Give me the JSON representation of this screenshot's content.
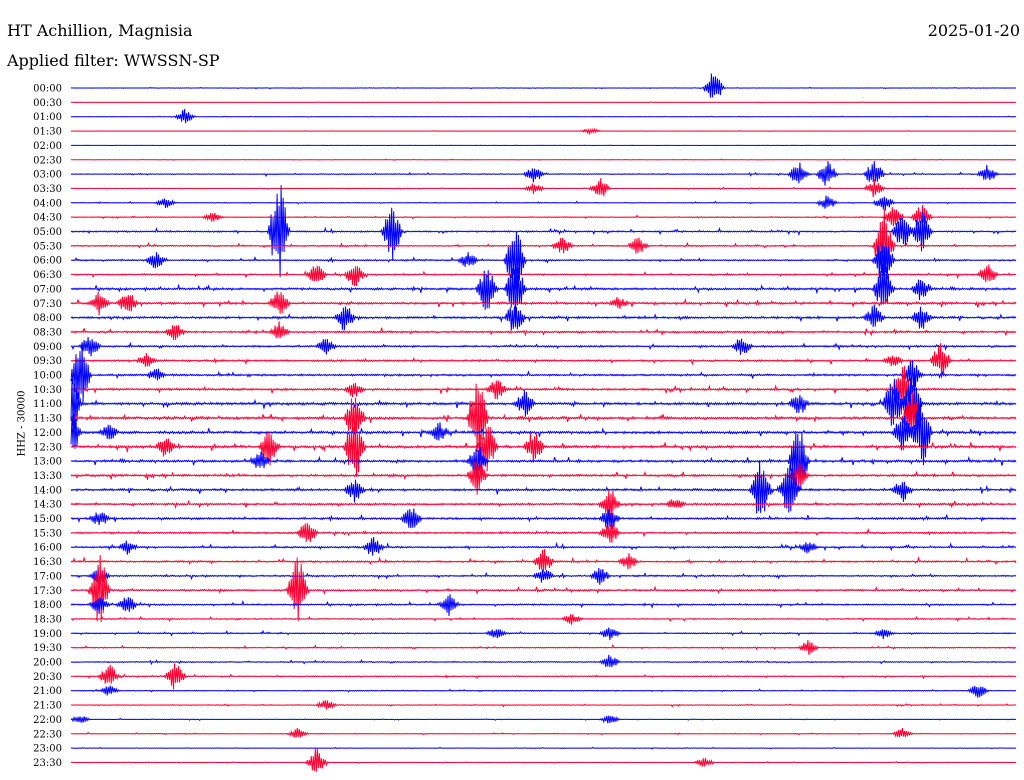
{
  "header": {
    "station": "HT Achillion, Magnisia",
    "date": "2025-01-20",
    "filter": "Applied filter: WWSSN-SP"
  },
  "chart_data": {
    "type": "line",
    "title": "HT Achillion, Magnisia",
    "ylabel": "HHZ - 30000",
    "xlabel": "",
    "grid": false,
    "legend": "none",
    "colors": [
      "#0000ff",
      "#ff0033"
    ],
    "categories": [
      "00:00",
      "00:30",
      "01:00",
      "01:30",
      "02:00",
      "02:30",
      "03:00",
      "03:30",
      "04:00",
      "04:30",
      "05:00",
      "05:30",
      "06:00",
      "06:30",
      "07:00",
      "07:30",
      "08:00",
      "08:30",
      "09:00",
      "09:30",
      "10:00",
      "10:30",
      "11:00",
      "11:30",
      "12:00",
      "12:30",
      "13:00",
      "13:30",
      "14:00",
      "14:30",
      "15:00",
      "15:30",
      "16:00",
      "16:30",
      "17:00",
      "17:30",
      "18:00",
      "18:30",
      "19:00",
      "19:30",
      "20:00",
      "20:30",
      "21:00",
      "21:30",
      "22:00",
      "22:30",
      "23:00",
      "23:30"
    ],
    "series": [
      {
        "label": "00:00",
        "activity": 0.1,
        "events": [
          [
            0.68,
            18
          ]
        ]
      },
      {
        "label": "00:30",
        "activity": 0.08,
        "events": []
      },
      {
        "label": "01:00",
        "activity": 0.08,
        "events": [
          [
            0.12,
            8
          ]
        ]
      },
      {
        "label": "01:30",
        "activity": 0.05,
        "events": [
          [
            0.55,
            3
          ]
        ]
      },
      {
        "label": "02:00",
        "activity": 0.04,
        "events": []
      },
      {
        "label": "02:30",
        "activity": 0.1,
        "events": []
      },
      {
        "label": "03:00",
        "activity": 0.25,
        "events": [
          [
            0.49,
            10
          ],
          [
            0.77,
            14
          ],
          [
            0.8,
            16
          ],
          [
            0.85,
            16
          ],
          [
            0.97,
            10
          ]
        ]
      },
      {
        "label": "03:30",
        "activity": 0.2,
        "events": [
          [
            0.49,
            6
          ],
          [
            0.56,
            12
          ],
          [
            0.85,
            10
          ]
        ]
      },
      {
        "label": "04:00",
        "activity": 0.2,
        "events": [
          [
            0.1,
            6
          ],
          [
            0.8,
            8
          ],
          [
            0.86,
            10
          ]
        ]
      },
      {
        "label": "04:30",
        "activity": 0.25,
        "events": [
          [
            0.15,
            6
          ],
          [
            0.87,
            12
          ],
          [
            0.9,
            14
          ]
        ]
      },
      {
        "label": "05:00",
        "activity": 0.4,
        "events": [
          [
            0.22,
            60
          ],
          [
            0.34,
            30
          ],
          [
            0.88,
            20
          ],
          [
            0.9,
            22
          ]
        ]
      },
      {
        "label": "05:30",
        "activity": 0.35,
        "events": [
          [
            0.52,
            10
          ],
          [
            0.6,
            10
          ],
          [
            0.86,
            40
          ]
        ]
      },
      {
        "label": "06:00",
        "activity": 0.4,
        "events": [
          [
            0.09,
            10
          ],
          [
            0.42,
            10
          ],
          [
            0.47,
            40
          ],
          [
            0.86,
            30
          ]
        ]
      },
      {
        "label": "06:30",
        "activity": 0.4,
        "events": [
          [
            0.26,
            12
          ],
          [
            0.3,
            14
          ],
          [
            0.97,
            12
          ]
        ]
      },
      {
        "label": "07:00",
        "activity": 0.6,
        "events": [
          [
            0.44,
            28
          ],
          [
            0.47,
            35
          ],
          [
            0.86,
            30
          ],
          [
            0.9,
            14
          ]
        ]
      },
      {
        "label": "07:30",
        "activity": 0.6,
        "events": [
          [
            0.03,
            14
          ],
          [
            0.06,
            14
          ],
          [
            0.22,
            16
          ],
          [
            0.58,
            8
          ]
        ]
      },
      {
        "label": "08:00",
        "activity": 0.6,
        "events": [
          [
            0.29,
            16
          ],
          [
            0.47,
            20
          ],
          [
            0.85,
            14
          ],
          [
            0.9,
            14
          ]
        ]
      },
      {
        "label": "08:30",
        "activity": 0.55,
        "events": [
          [
            0.11,
            10
          ],
          [
            0.22,
            12
          ]
        ]
      },
      {
        "label": "09:00",
        "activity": 0.5,
        "events": [
          [
            0.02,
            14
          ],
          [
            0.27,
            10
          ],
          [
            0.71,
            12
          ]
        ]
      },
      {
        "label": "09:30",
        "activity": 0.5,
        "events": [
          [
            0.08,
            8
          ],
          [
            0.87,
            8
          ],
          [
            0.92,
            20
          ]
        ]
      },
      {
        "label": "10:00",
        "activity": 0.55,
        "events": [
          [
            0.01,
            40
          ],
          [
            0.09,
            8
          ],
          [
            0.89,
            18
          ]
        ]
      },
      {
        "label": "10:30",
        "activity": 0.55,
        "events": [
          [
            0.3,
            10
          ],
          [
            0.45,
            12
          ],
          [
            0.88,
            30
          ]
        ]
      },
      {
        "label": "11:00",
        "activity": 0.7,
        "events": [
          [
            0.0,
            40
          ],
          [
            0.48,
            16
          ],
          [
            0.77,
            14
          ],
          [
            0.87,
            30
          ],
          [
            0.89,
            40
          ]
        ]
      },
      {
        "label": "11:30",
        "activity": 0.7,
        "events": [
          [
            0.3,
            30
          ],
          [
            0.43,
            50
          ],
          [
            0.89,
            30
          ]
        ]
      },
      {
        "label": "12:00",
        "activity": 0.7,
        "events": [
          [
            0.0,
            30
          ],
          [
            0.04,
            10
          ],
          [
            0.39,
            12
          ],
          [
            0.88,
            20
          ],
          [
            0.9,
            40
          ]
        ]
      },
      {
        "label": "12:30",
        "activity": 0.7,
        "events": [
          [
            0.1,
            12
          ],
          [
            0.21,
            22
          ],
          [
            0.3,
            40
          ],
          [
            0.44,
            30
          ],
          [
            0.49,
            20
          ]
        ]
      },
      {
        "label": "13:00",
        "activity": 0.65,
        "events": [
          [
            0.2,
            14
          ],
          [
            0.43,
            20
          ],
          [
            0.77,
            40
          ]
        ]
      },
      {
        "label": "13:30",
        "activity": 0.6,
        "events": [
          [
            0.43,
            20
          ],
          [
            0.77,
            14
          ]
        ]
      },
      {
        "label": "14:00",
        "activity": 0.6,
        "events": [
          [
            0.3,
            14
          ],
          [
            0.73,
            38
          ],
          [
            0.76,
            30
          ],
          [
            0.88,
            14
          ]
        ]
      },
      {
        "label": "14:30",
        "activity": 0.55,
        "events": [
          [
            0.57,
            20
          ],
          [
            0.64,
            8
          ]
        ]
      },
      {
        "label": "15:00",
        "activity": 0.55,
        "events": [
          [
            0.03,
            10
          ],
          [
            0.36,
            16
          ],
          [
            0.57,
            14
          ]
        ]
      },
      {
        "label": "15:30",
        "activity": 0.5,
        "events": [
          [
            0.25,
            14
          ],
          [
            0.57,
            14
          ]
        ]
      },
      {
        "label": "16:00",
        "activity": 0.45,
        "events": [
          [
            0.06,
            8
          ],
          [
            0.32,
            12
          ],
          [
            0.78,
            8
          ]
        ]
      },
      {
        "label": "16:30",
        "activity": 0.45,
        "events": [
          [
            0.5,
            14
          ],
          [
            0.59,
            10
          ]
        ]
      },
      {
        "label": "17:00",
        "activity": 0.4,
        "events": [
          [
            0.03,
            10
          ],
          [
            0.5,
            10
          ],
          [
            0.56,
            10
          ]
        ]
      },
      {
        "label": "17:30",
        "activity": 0.5,
        "events": [
          [
            0.03,
            40
          ],
          [
            0.24,
            38
          ]
        ]
      },
      {
        "label": "18:00",
        "activity": 0.4,
        "events": [
          [
            0.03,
            10
          ],
          [
            0.06,
            10
          ],
          [
            0.4,
            12
          ]
        ]
      },
      {
        "label": "18:30",
        "activity": 0.3,
        "events": [
          [
            0.53,
            6
          ]
        ]
      },
      {
        "label": "19:00",
        "activity": 0.3,
        "events": [
          [
            0.45,
            6
          ],
          [
            0.57,
            8
          ],
          [
            0.86,
            6
          ]
        ]
      },
      {
        "label": "19:30",
        "activity": 0.3,
        "events": [
          [
            0.78,
            8
          ]
        ]
      },
      {
        "label": "20:00",
        "activity": 0.3,
        "events": [
          [
            0.57,
            8
          ]
        ]
      },
      {
        "label": "20:30",
        "activity": 0.3,
        "events": [
          [
            0.04,
            14
          ],
          [
            0.11,
            16
          ]
        ]
      },
      {
        "label": "21:00",
        "activity": 0.25,
        "events": [
          [
            0.04,
            6
          ],
          [
            0.96,
            8
          ]
        ]
      },
      {
        "label": "21:30",
        "activity": 0.2,
        "events": [
          [
            0.27,
            6
          ]
        ]
      },
      {
        "label": "22:00",
        "activity": 0.12,
        "events": [
          [
            0.01,
            5
          ],
          [
            0.57,
            5
          ]
        ]
      },
      {
        "label": "22:30",
        "activity": 0.15,
        "events": [
          [
            0.24,
            6
          ],
          [
            0.88,
            6
          ]
        ]
      },
      {
        "label": "23:00",
        "activity": 0.12,
        "events": []
      },
      {
        "label": "23:30",
        "activity": 0.12,
        "events": [
          [
            0.26,
            16
          ],
          [
            0.67,
            5
          ]
        ]
      }
    ]
  }
}
